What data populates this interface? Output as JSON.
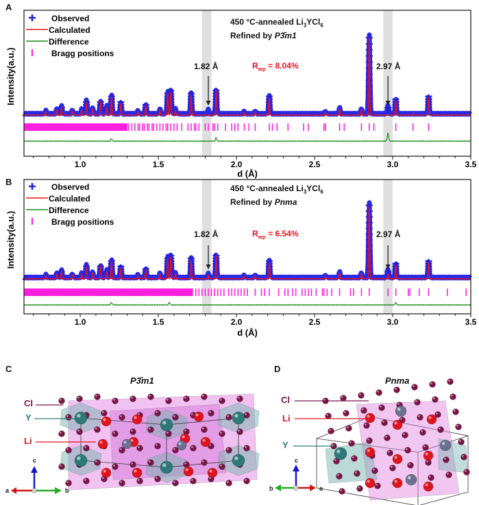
{
  "panels": {
    "A": {
      "label": "A",
      "legend": {
        "observed": "Observed",
        "calculated": "Calculated",
        "difference": "Difference",
        "bragg": "Bragg positions"
      },
      "sample_prefix": "450 °C-annealed Li",
      "sample_sub1": "3",
      "sample_mid": "YCl",
      "sample_sub2": "6",
      "refined_prefix": "Refined by ",
      "space_group": "P3̄m1",
      "annotation_left": "1.82 Å",
      "annotation_right": "2.97 Å",
      "rwp_R": "R",
      "rwp_sub": "wp",
      "rwp_value": " = 8.04%"
    },
    "B": {
      "label": "B",
      "legend": {
        "observed": "Observed",
        "calculated": "Calculated",
        "difference": "Difference",
        "bragg": "Bragg positions"
      },
      "sample_prefix": "450 °C-annealed Li",
      "sample_sub1": "3",
      "sample_mid": "YCl",
      "sample_sub2": "6",
      "refined_prefix": "Refined by ",
      "space_group": "Pnma",
      "annotation_left": "1.82 Å",
      "annotation_right": "2.97 Å",
      "rwp_R": "R",
      "rwp_sub": "wp",
      "rwp_value": " = 6.54%"
    },
    "C": {
      "label": "C",
      "title": "P3̄m1",
      "atoms": {
        "cl": "Cl",
        "y": "Y",
        "li": "Li"
      },
      "axes": {
        "a": "a",
        "b": "b",
        "c": "c"
      }
    },
    "D": {
      "label": "D",
      "title": "Pnma",
      "atoms": {
        "cl": "Cl",
        "y": "Y",
        "li": "Li"
      },
      "axes": {
        "a": "a",
        "b": "b",
        "c": "c"
      }
    }
  },
  "colors": {
    "observed": "#1f1fe0",
    "calculated": "#e8141c",
    "difference": "#1a8a1a",
    "bragg": "#ff1fe0",
    "rwp": "#e8141c",
    "band": "#d9d9d9",
    "cl": "#7a1446",
    "li": "#e0141e",
    "y": "#2e7a78"
  },
  "chart_data": [
    {
      "type": "line",
      "panel": "A",
      "xlabel": "d (Å)",
      "ylabel": "Intensity(a.u.)",
      "xlim": [
        0.64,
        3.5
      ],
      "ylim": [
        0,
        1
      ],
      "xticks": [
        "1.0",
        "1.5",
        "2.0",
        "2.5",
        "3.0",
        "3.5"
      ],
      "xtick_values": [
        1.0,
        1.5,
        2.0,
        2.5,
        3.0,
        3.5
      ],
      "highlight_bands": [
        [
          1.78,
          1.84
        ],
        [
          2.94,
          3.0
        ]
      ],
      "peaks_observed": [
        [
          0.78,
          0.04
        ],
        [
          0.85,
          0.06
        ],
        [
          0.88,
          0.1
        ],
        [
          0.95,
          0.05
        ],
        [
          1.01,
          0.06
        ],
        [
          1.04,
          0.17
        ],
        [
          1.08,
          0.08
        ],
        [
          1.13,
          0.17
        ],
        [
          1.17,
          0.1
        ],
        [
          1.2,
          0.24
        ],
        [
          1.26,
          0.15
        ],
        [
          1.37,
          0.04
        ],
        [
          1.42,
          0.12
        ],
        [
          1.51,
          0.06
        ],
        [
          1.56,
          0.28
        ],
        [
          1.58,
          0.3
        ],
        [
          1.61,
          0.06
        ],
        [
          1.71,
          0.26
        ],
        [
          1.82,
          0.05
        ],
        [
          1.87,
          0.31
        ],
        [
          2.05,
          0.03
        ],
        [
          2.12,
          0.04
        ],
        [
          2.21,
          0.22
        ],
        [
          2.57,
          0.03
        ],
        [
          2.66,
          0.08
        ],
        [
          2.8,
          0.07
        ],
        [
          2.85,
          1.0
        ],
        [
          2.97,
          0.1
        ],
        [
          3.02,
          0.19
        ],
        [
          3.23,
          0.22
        ]
      ],
      "peaks_calculated": [
        [
          0.78,
          0.04
        ],
        [
          0.85,
          0.06
        ],
        [
          0.88,
          0.1
        ],
        [
          0.95,
          0.05
        ],
        [
          1.01,
          0.06
        ],
        [
          1.04,
          0.17
        ],
        [
          1.08,
          0.08
        ],
        [
          1.13,
          0.17
        ],
        [
          1.17,
          0.1
        ],
        [
          1.2,
          0.24
        ],
        [
          1.26,
          0.15
        ],
        [
          1.37,
          0.04
        ],
        [
          1.42,
          0.12
        ],
        [
          1.51,
          0.06
        ],
        [
          1.56,
          0.28
        ],
        [
          1.58,
          0.3
        ],
        [
          1.61,
          0.06
        ],
        [
          1.71,
          0.26
        ],
        [
          1.87,
          0.31
        ],
        [
          2.05,
          0.03
        ],
        [
          2.12,
          0.04
        ],
        [
          2.21,
          0.22
        ],
        [
          2.57,
          0.03
        ],
        [
          2.66,
          0.08
        ],
        [
          2.8,
          0.07
        ],
        [
          2.85,
          1.0
        ],
        [
          3.02,
          0.19
        ],
        [
          3.13,
          0.02
        ],
        [
          3.23,
          0.22
        ]
      ],
      "difference_features": [
        [
          1.2,
          0.03
        ],
        [
          1.87,
          0.04
        ],
        [
          2.97,
          0.1
        ]
      ],
      "bragg_dense_range": [
        0.64,
        1.3
      ],
      "bragg_positions": [
        1.31,
        1.33,
        1.35,
        1.37,
        1.38,
        1.4,
        1.41,
        1.43,
        1.44,
        1.46,
        1.47,
        1.49,
        1.51,
        1.53,
        1.55,
        1.56,
        1.58,
        1.6,
        1.62,
        1.65,
        1.69,
        1.71,
        1.73,
        1.74,
        1.76,
        1.8,
        1.82,
        1.85,
        1.86,
        1.88,
        1.93,
        1.97,
        1.99,
        2.01,
        2.05,
        2.08,
        2.12,
        2.21,
        2.23,
        2.26,
        2.33,
        2.43,
        2.46,
        2.56,
        2.57,
        2.66,
        2.69,
        2.8,
        2.85,
        2.88,
        3.02,
        3.13,
        3.23
      ],
      "annotations": [
        {
          "text": "1.82 Å",
          "x": 1.82
        },
        {
          "text": "2.97 Å",
          "x": 2.97
        }
      ],
      "legend": "top-left",
      "grid": false
    },
    {
      "type": "line",
      "panel": "B",
      "xlabel": "d (Å)",
      "ylabel": "Intensity(a.u.)",
      "xlim": [
        0.64,
        3.5
      ],
      "ylim": [
        0,
        1
      ],
      "xticks": [
        "1.0",
        "1.5",
        "2.0",
        "2.5",
        "3.0",
        "3.5"
      ],
      "xtick_values": [
        1.0,
        1.5,
        2.0,
        2.5,
        3.0,
        3.5
      ],
      "highlight_bands": [
        [
          1.78,
          1.84
        ],
        [
          2.94,
          3.0
        ]
      ],
      "peaks_observed": [
        [
          0.78,
          0.04
        ],
        [
          0.85,
          0.06
        ],
        [
          0.88,
          0.1
        ],
        [
          0.95,
          0.05
        ],
        [
          1.01,
          0.06
        ],
        [
          1.04,
          0.17
        ],
        [
          1.08,
          0.08
        ],
        [
          1.13,
          0.17
        ],
        [
          1.17,
          0.1
        ],
        [
          1.2,
          0.24
        ],
        [
          1.26,
          0.15
        ],
        [
          1.37,
          0.04
        ],
        [
          1.42,
          0.12
        ],
        [
          1.51,
          0.06
        ],
        [
          1.56,
          0.28
        ],
        [
          1.58,
          0.3
        ],
        [
          1.61,
          0.06
        ],
        [
          1.71,
          0.26
        ],
        [
          1.82,
          0.05
        ],
        [
          1.87,
          0.31
        ],
        [
          2.05,
          0.03
        ],
        [
          2.12,
          0.04
        ],
        [
          2.21,
          0.22
        ],
        [
          2.57,
          0.03
        ],
        [
          2.66,
          0.08
        ],
        [
          2.8,
          0.07
        ],
        [
          2.85,
          1.0
        ],
        [
          2.97,
          0.1
        ],
        [
          3.02,
          0.19
        ],
        [
          3.23,
          0.22
        ]
      ],
      "peaks_calculated": [
        [
          0.78,
          0.04
        ],
        [
          0.85,
          0.06
        ],
        [
          0.88,
          0.1
        ],
        [
          0.95,
          0.05
        ],
        [
          1.01,
          0.06
        ],
        [
          1.04,
          0.17
        ],
        [
          1.08,
          0.08
        ],
        [
          1.13,
          0.17
        ],
        [
          1.17,
          0.1
        ],
        [
          1.2,
          0.24
        ],
        [
          1.26,
          0.15
        ],
        [
          1.37,
          0.04
        ],
        [
          1.42,
          0.12
        ],
        [
          1.51,
          0.06
        ],
        [
          1.56,
          0.28
        ],
        [
          1.58,
          0.3
        ],
        [
          1.61,
          0.06
        ],
        [
          1.71,
          0.26
        ],
        [
          1.82,
          0.04
        ],
        [
          1.87,
          0.31
        ],
        [
          2.05,
          0.03
        ],
        [
          2.12,
          0.04
        ],
        [
          2.21,
          0.22
        ],
        [
          2.57,
          0.03
        ],
        [
          2.66,
          0.08
        ],
        [
          2.8,
          0.07
        ],
        [
          2.85,
          1.0
        ],
        [
          2.97,
          0.07
        ],
        [
          3.02,
          0.19
        ],
        [
          3.23,
          0.22
        ]
      ],
      "difference_features": [
        [
          1.2,
          0.03
        ],
        [
          1.57,
          0.03
        ],
        [
          3.02,
          0.03
        ]
      ],
      "bragg_dense_range": [
        0.64,
        1.72
      ],
      "bragg_positions": [
        1.74,
        1.76,
        1.78,
        1.8,
        1.82,
        1.84,
        1.86,
        1.88,
        1.9,
        1.92,
        1.95,
        1.97,
        1.99,
        2.01,
        2.03,
        2.05,
        2.07,
        2.12,
        2.16,
        2.18,
        2.21,
        2.27,
        2.31,
        2.33,
        2.36,
        2.38,
        2.42,
        2.44,
        2.46,
        2.48,
        2.51,
        2.55,
        2.56,
        2.58,
        2.61,
        2.66,
        2.73,
        2.75,
        2.8,
        2.85,
        2.97,
        3.02,
        3.1,
        3.11,
        3.17,
        3.23,
        3.35,
        3.47
      ],
      "annotations": [
        {
          "text": "1.82 Å",
          "x": 1.82
        },
        {
          "text": "2.97 Å",
          "x": 2.97
        }
      ],
      "legend": "top-left",
      "grid": false
    }
  ]
}
